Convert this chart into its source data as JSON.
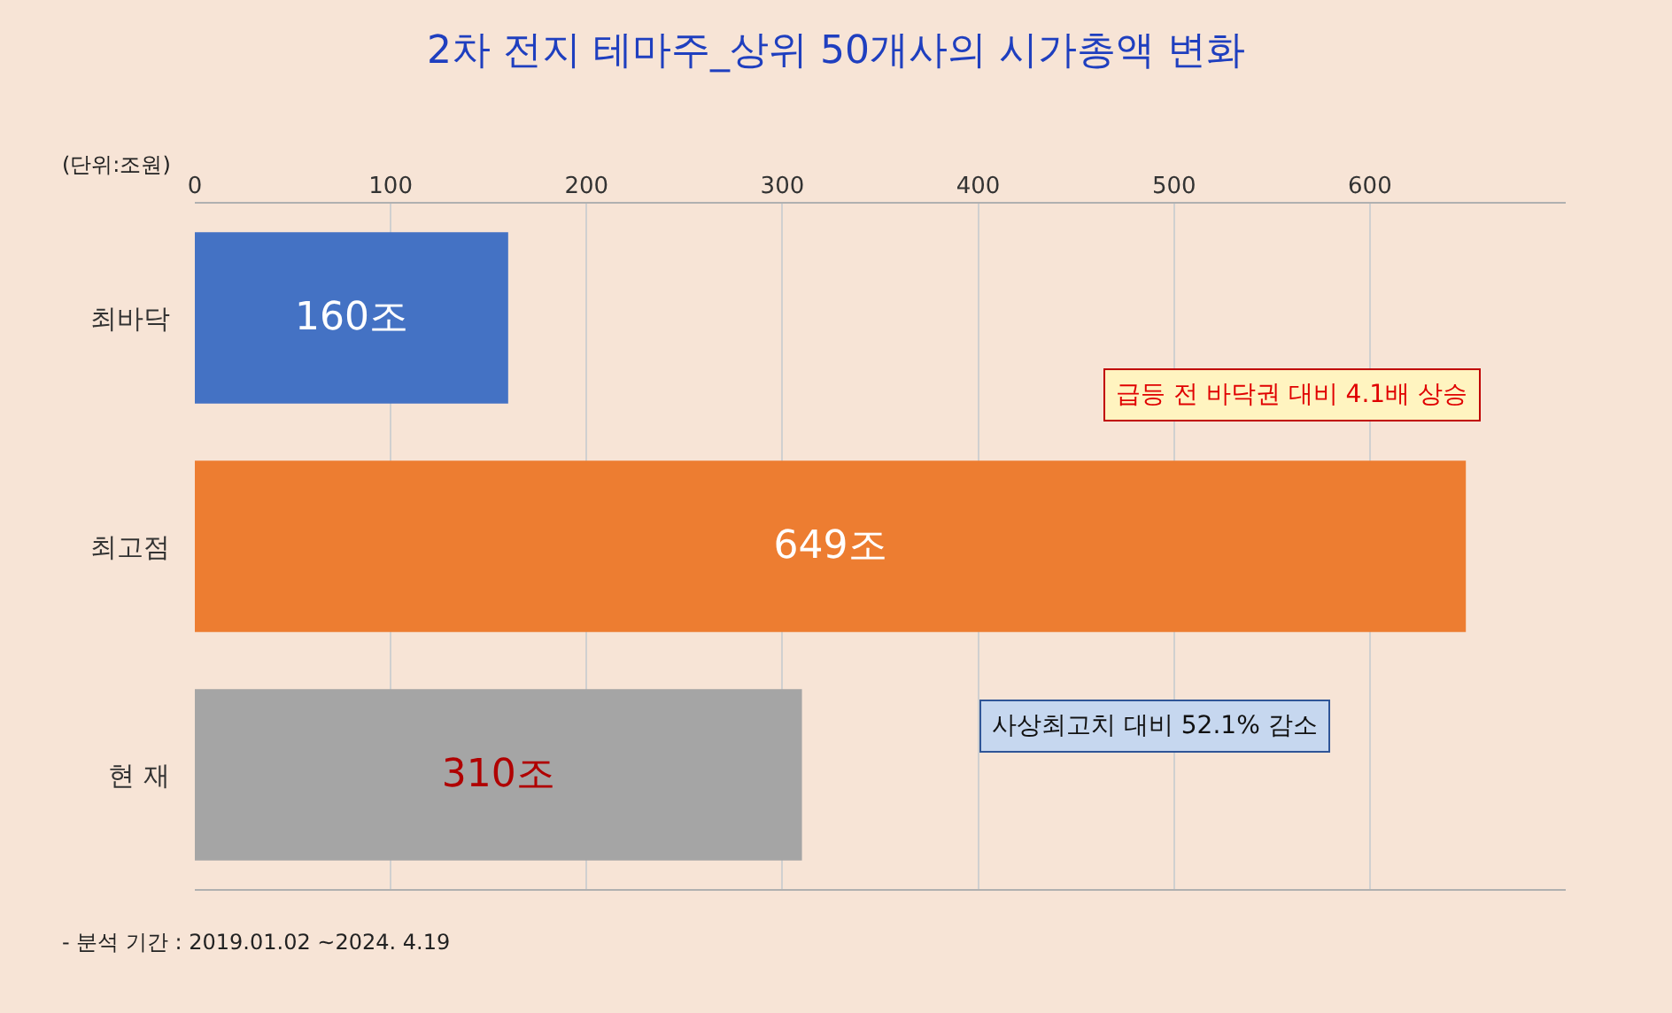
{
  "chart_data": {
    "type": "bar",
    "orientation": "horizontal",
    "title": "2차 전지 테마주_상위 50개사의 시가총액 변화",
    "categories": [
      "최바닥",
      "최고점",
      "현 재"
    ],
    "values": [
      160,
      649,
      310
    ],
    "colors": [
      "#4472c4",
      "#ed7d31",
      "#a5a5a5"
    ],
    "value_labels": [
      "160조",
      "649조",
      "310조"
    ],
    "xlim": [
      0,
      700
    ],
    "xticks": [
      0,
      100,
      200,
      300,
      400,
      500,
      600
    ],
    "grid": "x",
    "annotations": [
      "(단위:조원)",
      "급등 전 바닥권 대비 4.1배 상승",
      "사상최고치 대비 52.1% 감소",
      "- 분석 기간 : 2019.01.02 ~2024. 4.19"
    ]
  }
}
